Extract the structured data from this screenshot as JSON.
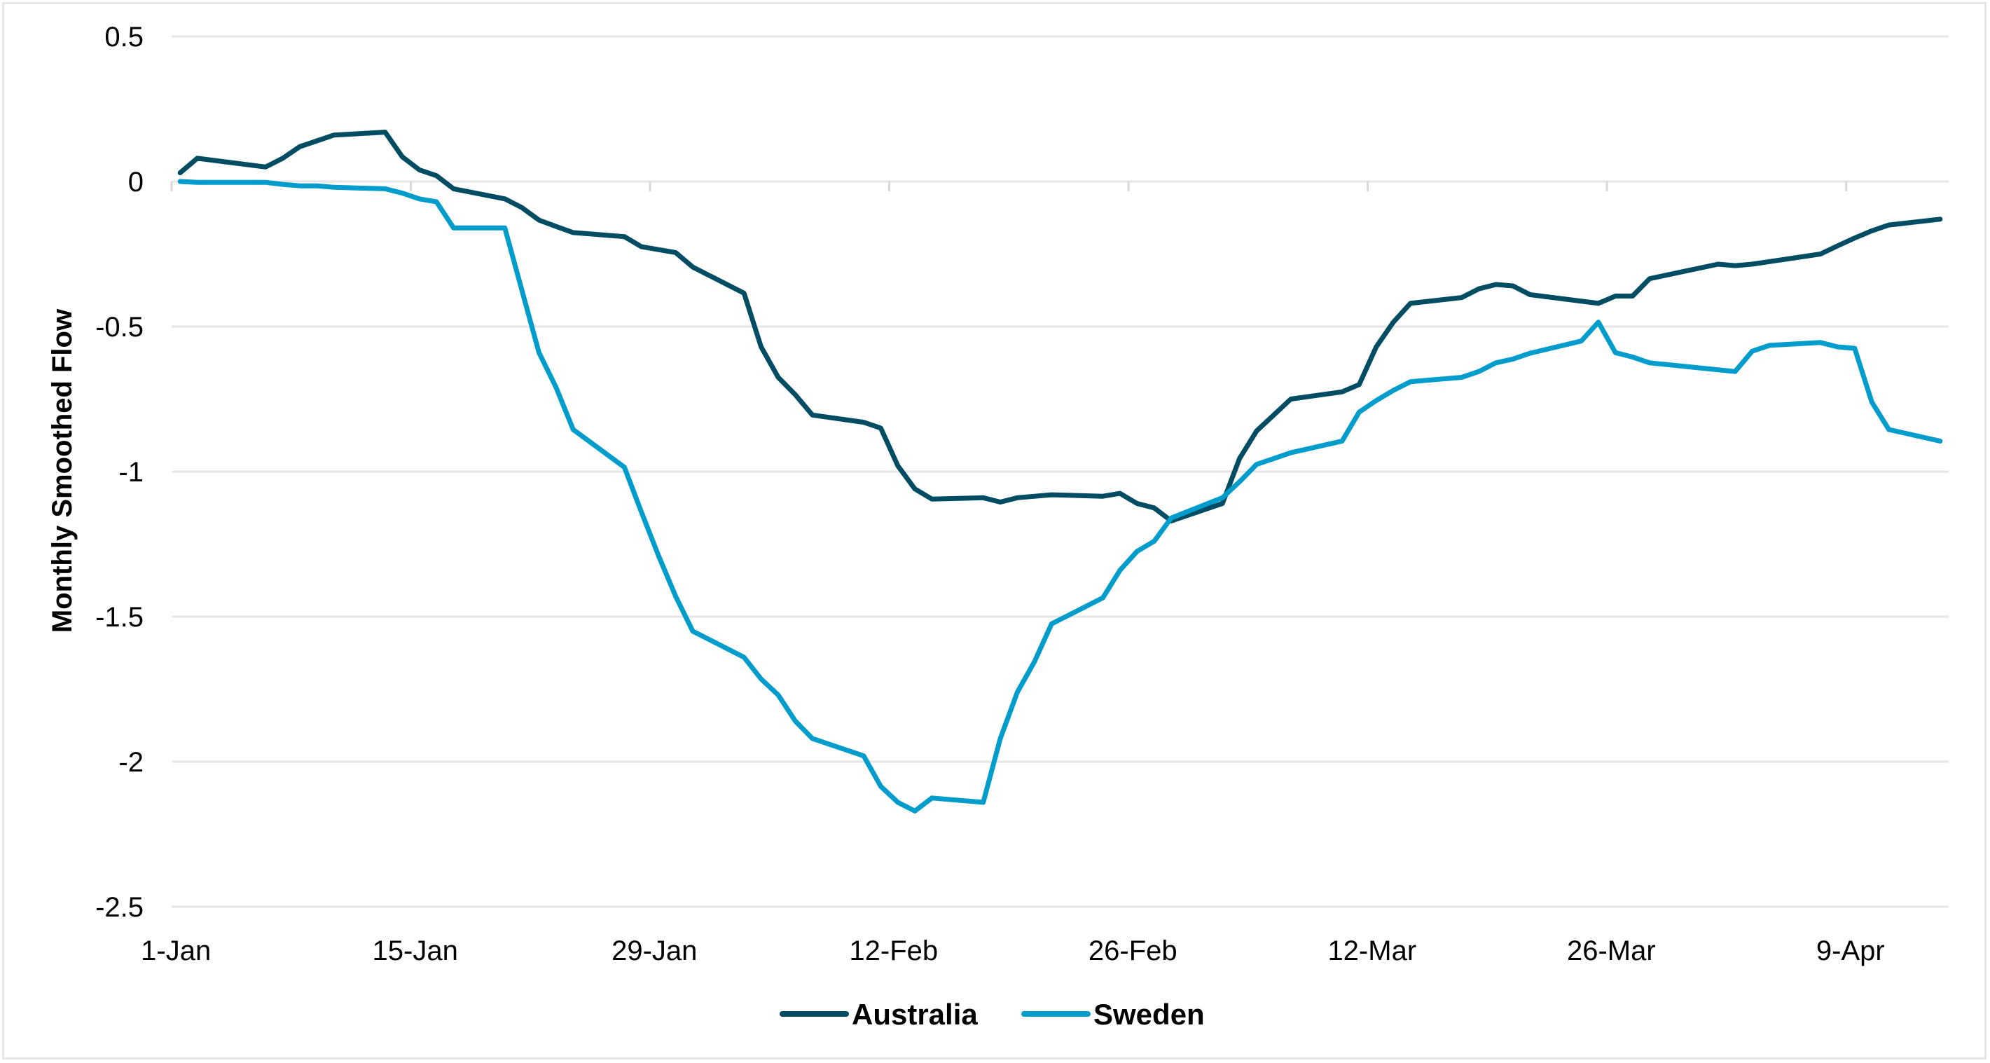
{
  "chart_data": {
    "type": "line",
    "title": "",
    "xlabel": "",
    "ylabel": "Monthly Smoothed Flow",
    "ylim": [
      -2.5,
      0.5
    ],
    "yticks": [
      "0.5",
      "0",
      "-0.5",
      "-1",
      "-1.5",
      "-2",
      "-2.5"
    ],
    "ytick_values": [
      0.5,
      0,
      -0.5,
      -1,
      -1.5,
      -2,
      -2.5
    ],
    "x_tick_labels": [
      "1-Jan",
      "15-Jan",
      "29-Jan",
      "12-Feb",
      "26-Feb",
      "12-Mar",
      "26-Mar",
      "9-Apr"
    ],
    "x_tick_index": [
      0,
      14,
      28,
      42,
      56,
      70,
      84,
      98
    ],
    "x_points_count": 104,
    "grid": "horizontal",
    "legend_position": "bottom",
    "series": [
      {
        "name": "Australia",
        "color": "#004c63",
        "points": [
          [
            0,
            0.03
          ],
          [
            1,
            0.08
          ],
          [
            5,
            0.05
          ],
          [
            6,
            0.08
          ],
          [
            7,
            0.12
          ],
          [
            8,
            0.14
          ],
          [
            9,
            0.16
          ],
          [
            12,
            0.17
          ],
          [
            13,
            0.085
          ],
          [
            14,
            0.04
          ],
          [
            15,
            0.02
          ],
          [
            16,
            -0.025
          ],
          [
            19,
            -0.06
          ],
          [
            20,
            -0.09
          ],
          [
            21,
            -0.133
          ],
          [
            22,
            -0.155
          ],
          [
            23,
            -0.176
          ],
          [
            26,
            -0.19
          ],
          [
            27,
            -0.225
          ],
          [
            29,
            -0.245
          ],
          [
            30,
            -0.295
          ],
          [
            33,
            -0.385
          ],
          [
            34,
            -0.57
          ],
          [
            35,
            -0.675
          ],
          [
            36,
            -0.735
          ],
          [
            37,
            -0.805
          ],
          [
            40,
            -0.83
          ],
          [
            41,
            -0.85
          ],
          [
            42,
            -0.98
          ],
          [
            43,
            -1.06
          ],
          [
            44,
            -1.095
          ],
          [
            47,
            -1.09
          ],
          [
            48,
            -1.105
          ],
          [
            49,
            -1.09
          ],
          [
            51,
            -1.08
          ],
          [
            54,
            -1.085
          ],
          [
            55,
            -1.075
          ],
          [
            56,
            -1.11
          ],
          [
            57,
            -1.125
          ],
          [
            58,
            -1.17
          ],
          [
            61,
            -1.11
          ],
          [
            62,
            -0.955
          ],
          [
            63,
            -0.86
          ],
          [
            64,
            -0.805
          ],
          [
            65,
            -0.75
          ],
          [
            68,
            -0.725
          ],
          [
            69,
            -0.7
          ],
          [
            70,
            -0.57
          ],
          [
            71,
            -0.485
          ],
          [
            72,
            -0.42
          ],
          [
            75,
            -0.4
          ],
          [
            76,
            -0.37
          ],
          [
            77,
            -0.355
          ],
          [
            78,
            -0.36
          ],
          [
            79,
            -0.39
          ],
          [
            83,
            -0.42
          ],
          [
            84,
            -0.395
          ],
          [
            85,
            -0.395
          ],
          [
            86,
            -0.335
          ],
          [
            90,
            -0.285
          ],
          [
            91,
            -0.29
          ],
          [
            92,
            -0.285
          ],
          [
            96,
            -0.25
          ],
          [
            97,
            -0.222
          ],
          [
            98,
            -0.195
          ],
          [
            99,
            -0.17
          ],
          [
            100,
            -0.15
          ],
          [
            103,
            -0.13
          ]
        ]
      },
      {
        "name": "Sweden",
        "color": "#009ccc",
        "points": [
          [
            0,
            0.0
          ],
          [
            1,
            -0.003
          ],
          [
            5,
            -0.003
          ],
          [
            6,
            -0.01
          ],
          [
            7,
            -0.015
          ],
          [
            8,
            -0.015
          ],
          [
            9,
            -0.02
          ],
          [
            12,
            -0.025
          ],
          [
            13,
            -0.04
          ],
          [
            14,
            -0.06
          ],
          [
            15,
            -0.07
          ],
          [
            16,
            -0.16
          ],
          [
            19,
            -0.16
          ],
          [
            21,
            -0.59
          ],
          [
            22,
            -0.71
          ],
          [
            23,
            -0.855
          ],
          [
            26,
            -0.985
          ],
          [
            27,
            -1.14
          ],
          [
            28,
            -1.29
          ],
          [
            29,
            -1.43
          ],
          [
            30,
            -1.55
          ],
          [
            33,
            -1.64
          ],
          [
            34,
            -1.715
          ],
          [
            35,
            -1.77
          ],
          [
            36,
            -1.86
          ],
          [
            37,
            -1.92
          ],
          [
            40,
            -1.98
          ],
          [
            41,
            -2.085
          ],
          [
            42,
            -2.14
          ],
          [
            43,
            -2.17
          ],
          [
            44,
            -2.125
          ],
          [
            47,
            -2.14
          ],
          [
            48,
            -1.92
          ],
          [
            49,
            -1.76
          ],
          [
            50,
            -1.655
          ],
          [
            51,
            -1.525
          ],
          [
            54,
            -1.435
          ],
          [
            55,
            -1.34
          ],
          [
            56,
            -1.275
          ],
          [
            57,
            -1.24
          ],
          [
            58,
            -1.16
          ],
          [
            61,
            -1.09
          ],
          [
            62,
            -1.035
          ],
          [
            63,
            -0.975
          ],
          [
            64,
            -0.955
          ],
          [
            65,
            -0.935
          ],
          [
            68,
            -0.895
          ],
          [
            69,
            -0.795
          ],
          [
            70,
            -0.755
          ],
          [
            71,
            -0.72
          ],
          [
            72,
            -0.69
          ],
          [
            75,
            -0.675
          ],
          [
            76,
            -0.655
          ],
          [
            77,
            -0.625
          ],
          [
            78,
            -0.612
          ],
          [
            79,
            -0.592
          ],
          [
            82,
            -0.55
          ],
          [
            83,
            -0.485
          ],
          [
            84,
            -0.59
          ],
          [
            85,
            -0.605
          ],
          [
            86,
            -0.625
          ],
          [
            91,
            -0.655
          ],
          [
            92,
            -0.585
          ],
          [
            93,
            -0.565
          ],
          [
            96,
            -0.555
          ],
          [
            97,
            -0.57
          ],
          [
            98,
            -0.575
          ],
          [
            99,
            -0.76
          ],
          [
            100,
            -0.855
          ],
          [
            103,
            -0.895
          ]
        ]
      }
    ]
  },
  "legend": {
    "items": [
      {
        "label": "Australia",
        "color": "#004c63"
      },
      {
        "label": "Sweden",
        "color": "#009ccc"
      }
    ]
  },
  "axes": {
    "y_title": "Monthly Smoothed Flow",
    "gridline_color": "#e6e6e6",
    "tick_color": "#d9d9d9"
  }
}
